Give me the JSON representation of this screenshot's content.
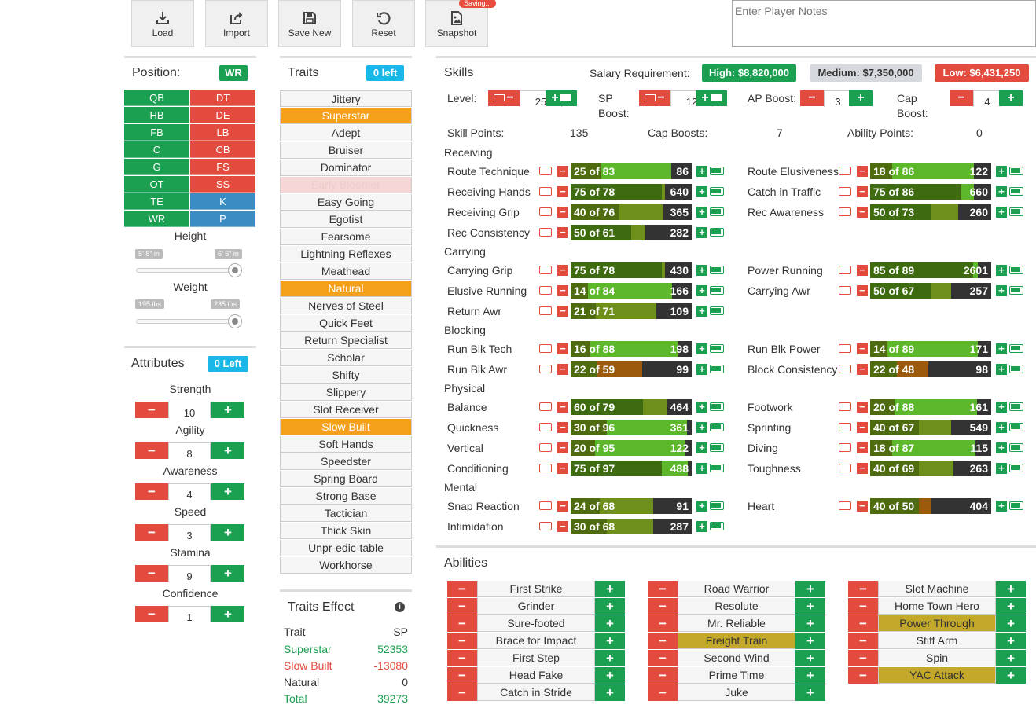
{
  "toolbar": {
    "load": "Load",
    "import": "Import",
    "save_new": "Save New",
    "reset": "Reset",
    "snapshot": "Snapshot",
    "saving_badge": "Saving..."
  },
  "notes": {
    "placeholder": "Enter Player Notes"
  },
  "position": {
    "title": "Position:",
    "selected": "WR",
    "left": [
      "QB",
      "HB",
      "FB",
      "C",
      "G",
      "OT",
      "TE",
      "WR"
    ],
    "right": [
      "DT",
      "DE",
      "LB",
      "CB",
      "FS",
      "SS",
      "K",
      "P"
    ]
  },
  "height": {
    "label": "Height",
    "min": "5' 8\" in",
    "max": "6' 6\" in"
  },
  "weight": {
    "label": "Weight",
    "min": "195 lbs",
    "max": "235 lbs"
  },
  "attributes": {
    "title": "Attributes",
    "badge": "0 Left",
    "items": [
      {
        "label": "Strength",
        "value": "10"
      },
      {
        "label": "Agility",
        "value": "8"
      },
      {
        "label": "Awareness",
        "value": "4"
      },
      {
        "label": "Speed",
        "value": "3"
      },
      {
        "label": "Stamina",
        "value": "9"
      },
      {
        "label": "Confidence",
        "value": "1"
      }
    ]
  },
  "traits": {
    "title": "Traits",
    "badge": "0 left",
    "items": [
      "Jittery",
      "Superstar",
      "Adept",
      "Bruiser",
      "Dominator",
      "Early Bloomer",
      "Easy Going",
      "Egotist",
      "Fearsome",
      "Lightning Reflexes",
      "Meathead",
      "Natural",
      "Nerves of Steel",
      "Quick Feet",
      "Return Specialist",
      "Scholar",
      "Shifty",
      "Slippery",
      "Slot Receiver",
      "Slow Built",
      "Soft Hands",
      "Speedster",
      "Spring Board",
      "Strong Base",
      "Tactician",
      "Thick Skin",
      "Unpr-edic-table",
      "Workhorse"
    ],
    "selected": [
      "Superstar",
      "Natural",
      "Slow Built"
    ],
    "disabled": [
      "Early Bloomer"
    ]
  },
  "traits_effect": {
    "title": "Traits Effect",
    "col_trait": "Trait",
    "col_sp": "SP",
    "rows": [
      {
        "name": "Superstar",
        "sp": "52353",
        "color": "#1aa050"
      },
      {
        "name": "Slow Built",
        "sp": "-13080",
        "color": "#e24b3e"
      },
      {
        "name": "Natural",
        "sp": "0",
        "color": "#333333"
      },
      {
        "name": "Total",
        "sp": "39273",
        "color": "#1aa050"
      }
    ]
  },
  "skills": {
    "title": "Skills",
    "salary_label": "Salary Requirement:",
    "salary_high": "High: $8,820,000",
    "salary_medium": "Medium: $7,350,000",
    "salary_low": "Low: $6,431,250",
    "level_label": "Level:",
    "level_value": "25",
    "sp_boost_label1": "SP",
    "sp_boost_label2": "Boost:",
    "sp_boost_value": "12",
    "ap_boost_label": "AP Boost:",
    "ap_boost_value": "3",
    "cap_boost_label1": "Cap",
    "cap_boost_label2": "Boost:",
    "cap_boost_value": "4",
    "skill_points_label": "Skill Points:",
    "skill_points_value": "135",
    "cap_boosts_label": "Cap Boosts:",
    "cap_boosts_value": "7",
    "ability_points_label": "Ability Points:",
    "ability_points_value": "0",
    "groups": [
      {
        "name": "Receiving",
        "rows": [
          [
            {
              "name": "Route Technique",
              "text": "25 of 83",
              "cost": "86",
              "cur": 25,
              "max": 83
            },
            {
              "name": "Route Elusiveness",
              "text": "18 of 86",
              "cost": "122",
              "cur": 18,
              "max": 86
            }
          ],
          [
            {
              "name": "Receiving Hands",
              "text": "75 of 78",
              "cost": "640",
              "cur": 75,
              "max": 78
            },
            {
              "name": "Catch in Traffic",
              "text": "75 of 86",
              "cost": "660",
              "cur": 75,
              "max": 86
            }
          ],
          [
            {
              "name": "Receiving Grip",
              "text": "40 of 76",
              "cost": "365",
              "cur": 40,
              "max": 76
            },
            {
              "name": "Rec Awareness",
              "text": "50 of 73",
              "cost": "260",
              "cur": 50,
              "max": 73
            }
          ],
          [
            {
              "name": "Rec Consistency",
              "text": "50 of 61",
              "cost": "282",
              "cur": 50,
              "max": 61
            },
            null
          ]
        ]
      },
      {
        "name": "Carrying",
        "rows": [
          [
            {
              "name": "Carrying Grip",
              "text": "75 of 78",
              "cost": "430",
              "cur": 75,
              "max": 78
            },
            {
              "name": "Power Running",
              "text": "85 of 89",
              "cost": "2601",
              "cur": 85,
              "max": 89
            }
          ],
          [
            {
              "name": "Elusive Running",
              "text": "14 of 84",
              "cost": "166",
              "cur": 14,
              "max": 84
            },
            {
              "name": "Carrying Awr",
              "text": "50 of 67",
              "cost": "257",
              "cur": 50,
              "max": 67
            }
          ],
          [
            {
              "name": "Return Awr",
              "text": "21 of 71",
              "cost": "109",
              "cur": 21,
              "max": 71
            },
            null
          ]
        ]
      },
      {
        "name": "Blocking",
        "rows": [
          [
            {
              "name": "Run Blk Tech",
              "text": "16 of 88",
              "cost": "198",
              "cur": 16,
              "max": 88
            },
            {
              "name": "Run Blk Power",
              "text": "14 of 89",
              "cost": "171",
              "cur": 14,
              "max": 89
            }
          ],
          [
            {
              "name": "Run Blk Awr",
              "text": "22 of 59",
              "cost": "99",
              "cur": 22,
              "max": 59
            },
            {
              "name": "Block Consistency",
              "text": "22 of 48",
              "cost": "98",
              "cur": 22,
              "max": 48
            }
          ]
        ]
      },
      {
        "name": "Physical",
        "rows": [
          [
            {
              "name": "Balance",
              "text": "60 of 79",
              "cost": "464",
              "cur": 60,
              "max": 79
            },
            {
              "name": "Footwork",
              "text": "20 of 88",
              "cost": "161",
              "cur": 20,
              "max": 88
            }
          ],
          [
            {
              "name": "Quickness",
              "text": "30 of 96",
              "cost": "361",
              "cur": 30,
              "max": 96
            },
            {
              "name": "Sprinting",
              "text": "40 of 67",
              "cost": "549",
              "cur": 40,
              "max": 67
            }
          ],
          [
            {
              "name": "Vertical",
              "text": "20 of 95",
              "cost": "122",
              "cur": 20,
              "max": 95
            },
            {
              "name": "Diving",
              "text": "18 of 87",
              "cost": "115",
              "cur": 18,
              "max": 87
            }
          ],
          [
            {
              "name": "Conditioning",
              "text": "75 of 97",
              "cost": "488",
              "cur": 75,
              "max": 97
            },
            {
              "name": "Toughness",
              "text": "40 of 69",
              "cost": "263",
              "cur": 40,
              "max": 69
            }
          ]
        ]
      },
      {
        "name": "Mental",
        "rows": [
          [
            {
              "name": "Snap Reaction",
              "text": "24 of 68",
              "cost": "91",
              "cur": 24,
              "max": 68
            },
            {
              "name": "Heart",
              "text": "40 of 50",
              "cost": "404",
              "cur": 40,
              "max": 50
            }
          ],
          [
            {
              "name": "Intimidation",
              "text": "30 of 68",
              "cost": "287",
              "cur": 30,
              "max": 68
            },
            null
          ]
        ]
      }
    ]
  },
  "abilities": {
    "title": "Abilities",
    "columns": [
      [
        {
          "name": "First Strike",
          "sel": false
        },
        {
          "name": "Grinder",
          "sel": false
        },
        {
          "name": "Sure-footed",
          "sel": false
        },
        {
          "name": "Brace for Impact",
          "sel": false
        },
        {
          "name": "First Step",
          "sel": false
        },
        {
          "name": "Head Fake",
          "sel": false
        },
        {
          "name": "Catch in Stride",
          "sel": false
        }
      ],
      [
        {
          "name": "Road Warrior",
          "sel": false
        },
        {
          "name": "Resolute",
          "sel": false
        },
        {
          "name": "Mr. Reliable",
          "sel": false
        },
        {
          "name": "Freight Train",
          "sel": true
        },
        {
          "name": "Second Wind",
          "sel": false
        },
        {
          "name": "Prime Time",
          "sel": false
        },
        {
          "name": "Juke",
          "sel": false
        }
      ],
      [
        {
          "name": "Slot Machine",
          "sel": false
        },
        {
          "name": "Home Town Hero",
          "sel": false
        },
        {
          "name": "Power Through",
          "sel": true
        },
        {
          "name": "Stiff Arm",
          "sel": false
        },
        {
          "name": "Spin",
          "sel": false
        },
        {
          "name": "YAC Attack",
          "sel": true
        }
      ]
    ]
  },
  "colors": {
    "green": "#1aa050",
    "red": "#e24b3e",
    "blue": "#3b8cc2",
    "orange": "#f5a01a",
    "gold": "#c4a82a",
    "cyan": "#1ab8e8"
  }
}
